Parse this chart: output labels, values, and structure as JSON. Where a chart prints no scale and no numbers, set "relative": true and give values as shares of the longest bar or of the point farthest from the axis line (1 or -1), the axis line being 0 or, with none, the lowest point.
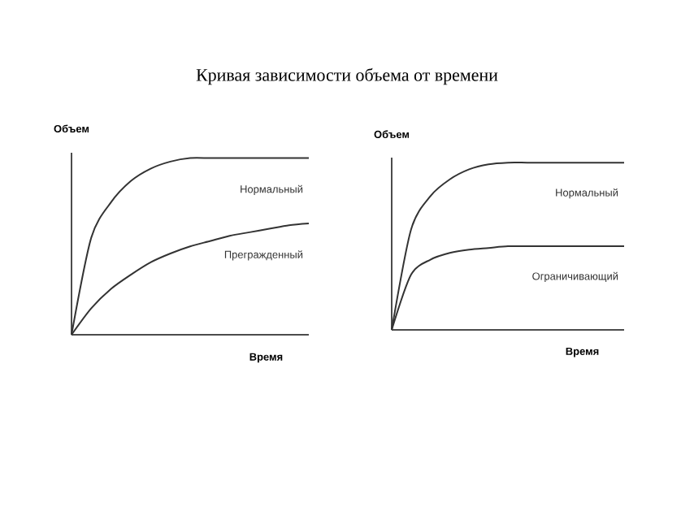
{
  "chart_data": [
    {
      "type": "line",
      "title": "Кривая зависимости объема от времени",
      "xlabel": "Время",
      "ylabel": "Объем",
      "relative": true,
      "categories": [
        null,
        null,
        null,
        null,
        null,
        null,
        null,
        null,
        null,
        null,
        null,
        null,
        null
      ],
      "series": [
        {
          "name": "Нормальный",
          "color": "#333333",
          "values": [
            0,
            0.55,
            0.75,
            0.87,
            0.94,
            0.98,
            1,
            1,
            1,
            1,
            1,
            1,
            1
          ]
        },
        {
          "name": "Прегражденный",
          "color": "#333333",
          "values": [
            0,
            0.15,
            0.26,
            0.34,
            0.41,
            0.46,
            0.5,
            0.53,
            0.56,
            0.58,
            0.6,
            0.62,
            0.63
          ]
        }
      ]
    },
    {
      "type": "line",
      "xlabel": "Время",
      "ylabel": "Объем",
      "relative": true,
      "categories": [
        null,
        null,
        null,
        null,
        null,
        null,
        null,
        null,
        null,
        null,
        null,
        null,
        null
      ],
      "series": [
        {
          "name": "Нормальный",
          "color": "#333333",
          "values": [
            0,
            0.6,
            0.8,
            0.9,
            0.96,
            0.99,
            1,
            1,
            1,
            1,
            1,
            1,
            1
          ]
        },
        {
          "name": "Ограничивающий",
          "color": "#333333",
          "values": [
            0,
            0.33,
            0.42,
            0.46,
            0.48,
            0.49,
            0.5,
            0.5,
            0.5,
            0.5,
            0.5,
            0.5,
            0.5
          ]
        }
      ]
    }
  ]
}
